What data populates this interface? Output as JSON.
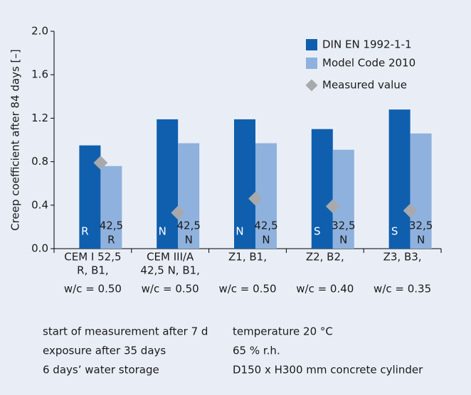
{
  "chart_data": {
    "type": "bar",
    "y_label": "Creep coefficient after 84 days [–]",
    "categories": [
      [
        "CEM I 52,5",
        "R, B1,"
      ],
      [
        "CEM III/A",
        "42,5 N, B1,"
      ],
      [
        "Z1, B1,"
      ],
      [
        "Z2, B2,"
      ],
      [
        "Z3, B3,"
      ]
    ],
    "water_cement": [
      "w/c = 0.50",
      "w/c = 0.50",
      "w/c = 0.50",
      "w/c = 0.40",
      "w/c = 0.35"
    ],
    "series": [
      {
        "name": "DIN EN 1992-1-1",
        "color": "#0f5fae",
        "values": [
          0.95,
          1.19,
          1.19,
          1.1,
          1.28
        ],
        "inner_labels": [
          "R",
          "N",
          "N",
          "S",
          "S"
        ]
      },
      {
        "name": "Model Code 2010",
        "color": "#8fb1dd",
        "values": [
          0.76,
          0.97,
          0.97,
          0.91,
          1.06
        ],
        "inner_labels": [
          [
            "42,5",
            "R"
          ],
          [
            "42,5",
            "N"
          ],
          [
            "42,5",
            "N"
          ],
          [
            "32,5",
            "N"
          ],
          [
            "32,5",
            "N"
          ]
        ]
      },
      {
        "name": "Measured value",
        "color": "#a7a9ac",
        "values": [
          0.79,
          0.33,
          0.46,
          0.39,
          0.35
        ]
      }
    ],
    "ylim": [
      0,
      2
    ],
    "yticks": [
      {
        "value": 0,
        "label": "0.0"
      },
      0.4,
      0.8,
      1.2,
      1.6,
      {
        "value": 2,
        "label": "2.0"
      }
    ],
    "notes": [
      [
        "start of measurement after 7 d",
        "exposure after 35 days",
        "6 days’ water storage"
      ],
      [
        "temperature 20 °C",
        "65 % r.h.",
        "D150 x H300 mm concrete cylinder"
      ]
    ]
  }
}
